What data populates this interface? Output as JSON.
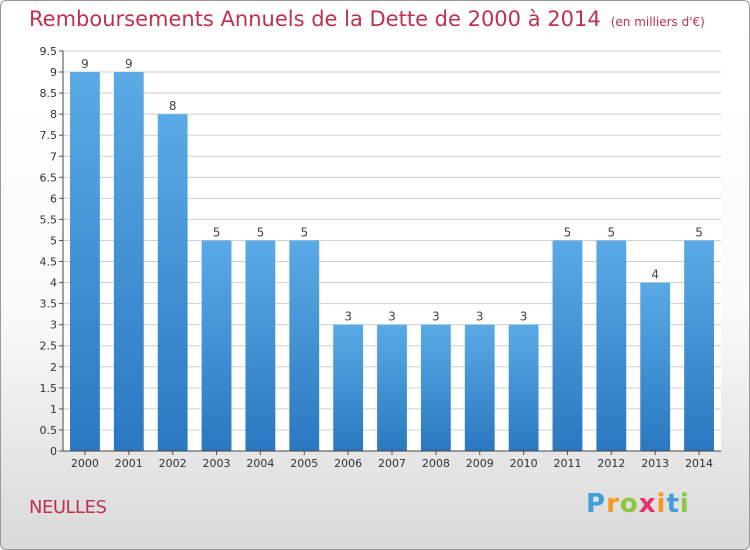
{
  "chart_data": {
    "type": "bar",
    "title": "Remboursements Annuels de la Dette de 2000 à 2014",
    "subtitle": "(en milliers d'€)",
    "categories": [
      "2000",
      "2001",
      "2002",
      "2003",
      "2004",
      "2005",
      "2006",
      "2007",
      "2008",
      "2009",
      "2010",
      "2011",
      "2012",
      "2013",
      "2014"
    ],
    "values": [
      9,
      9,
      8,
      5,
      5,
      5,
      3,
      3,
      3,
      3,
      3,
      5,
      5,
      4,
      5
    ],
    "ylim": [
      0,
      9.5
    ],
    "yticks": [
      "0",
      "0.5",
      "1",
      "1.5",
      "2",
      "2.5",
      "3",
      "3.5",
      "4",
      "4.5",
      "5",
      "5.5",
      "6",
      "6.5",
      "7",
      "7.5",
      "8",
      "8.5",
      "9",
      "9.5"
    ],
    "ytick_values": [
      0,
      0.5,
      1,
      1.5,
      2,
      2.5,
      3,
      3.5,
      4,
      4.5,
      5,
      5.5,
      6,
      6.5,
      7,
      7.5,
      8,
      8.5,
      9,
      9.5
    ],
    "grid": true,
    "bar_color": "#5aaae6",
    "bar_color_dark": "#2a78c0"
  },
  "place_name": "NEULLES",
  "logo": {
    "letters": [
      "P",
      "r",
      "o",
      "x",
      "i",
      "t",
      "i"
    ],
    "colors": [
      "#3fa0d8",
      "#f39a1e",
      "#8cc63e",
      "#e8326e",
      "#f39a1e",
      "#3fa0d8",
      "#8cc63e"
    ]
  },
  "title_color": "#c0304f"
}
